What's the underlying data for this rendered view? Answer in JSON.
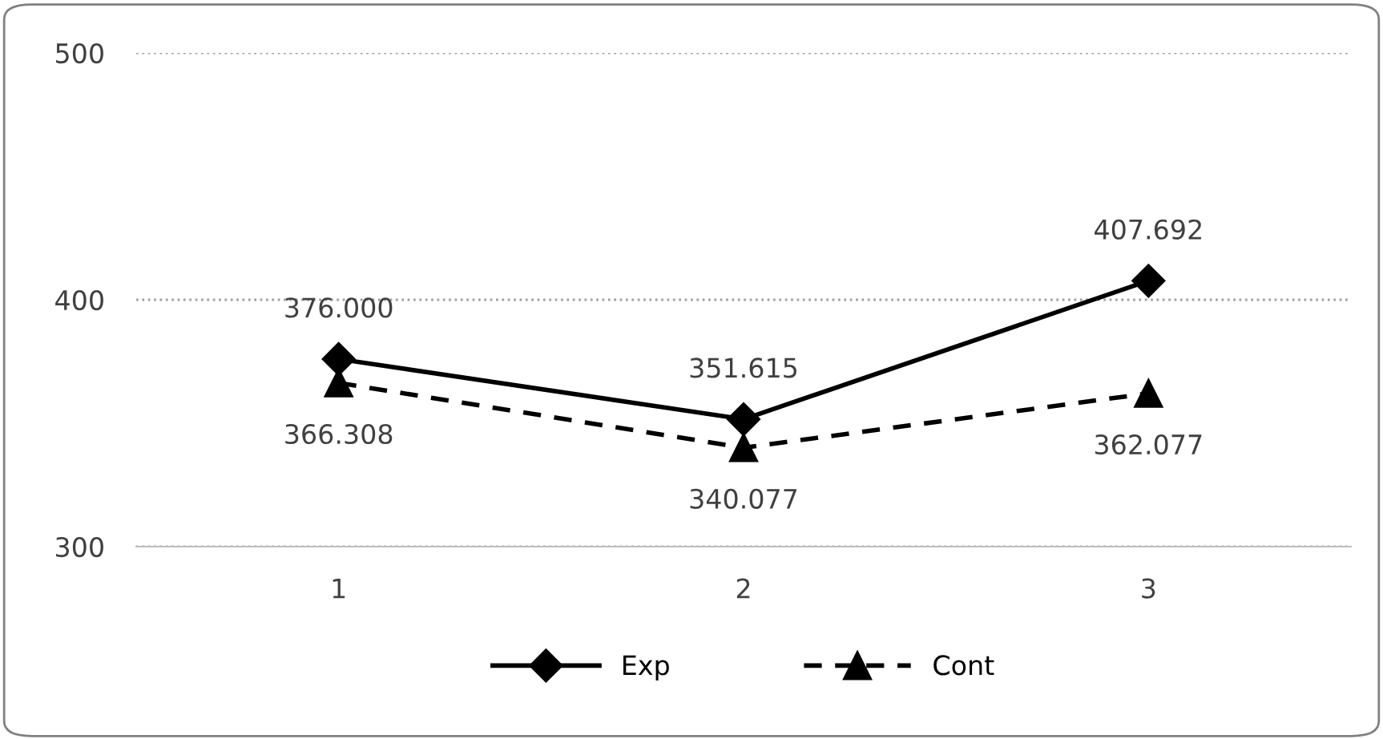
{
  "chart_data": {
    "type": "line",
    "categories": [
      "1",
      "2",
      "3"
    ],
    "series": [
      {
        "name": "Exp",
        "color": "#000000",
        "line_style": "solid",
        "marker": "diamond",
        "values": [
          376.0,
          351.615,
          407.692
        ],
        "value_labels": [
          "376.000",
          "351.615",
          "407.692"
        ]
      },
      {
        "name": "Cont",
        "color": "#000000",
        "line_style": "dashed",
        "marker": "triangle",
        "values": [
          366.308,
          340.077,
          362.077
        ],
        "value_labels": [
          "366.308",
          "340.077",
          "362.077"
        ]
      }
    ],
    "ylim": [
      300,
      500
    ],
    "yticks": [
      300,
      400,
      500
    ],
    "grid": "y",
    "legend": "bottom"
  }
}
